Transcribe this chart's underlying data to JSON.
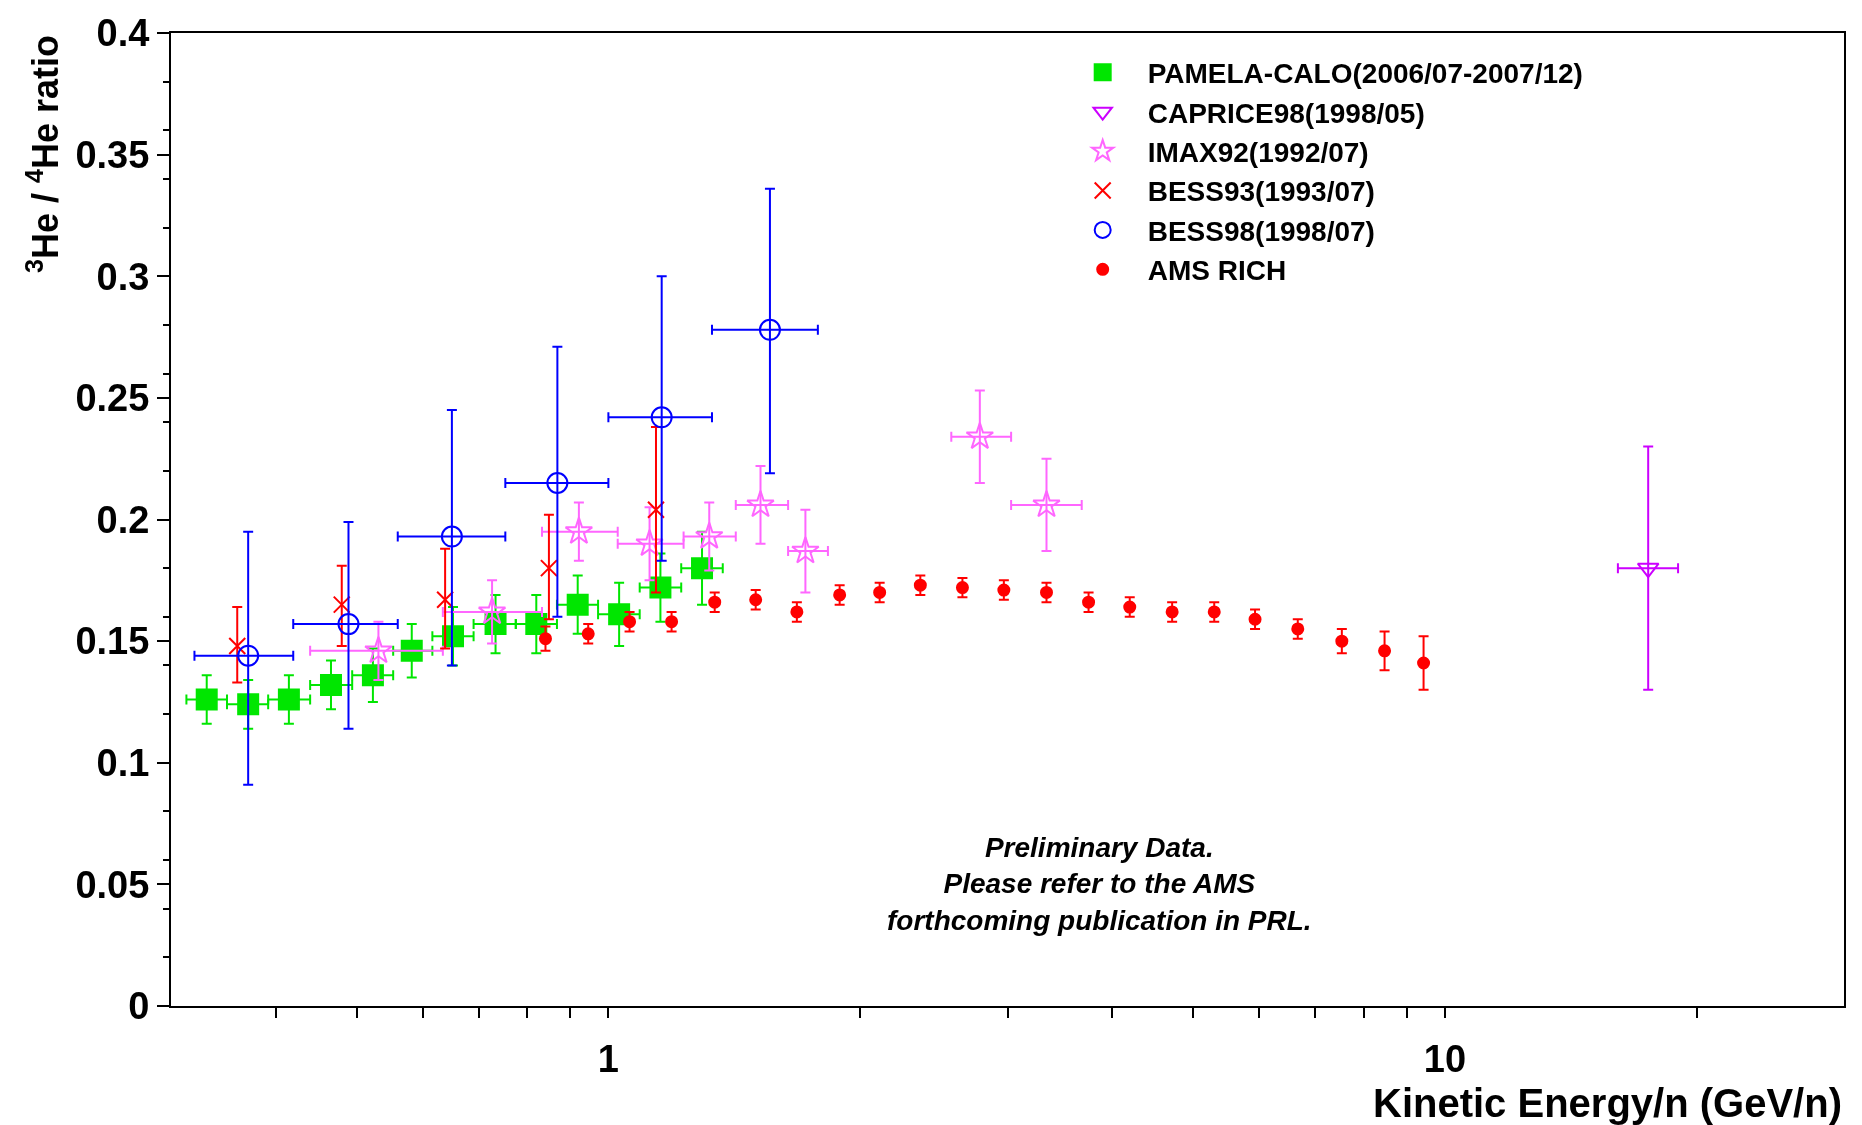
{
  "chart_data": {
    "type": "scatter",
    "xlabel": "Kinetic Energy/n (GeV/n)",
    "ylabel": "$^{3}$He / $^{4}$He ratio",
    "log": "x",
    "xlim": [
      0.3,
      30
    ],
    "xticks": [
      {
        "value": 0.4,
        "label": null
      },
      {
        "value": 0.5,
        "label": null
      },
      {
        "value": 0.6,
        "label": null
      },
      {
        "value": 0.7,
        "label": null
      },
      {
        "value": 0.8,
        "label": null
      },
      {
        "value": 0.9,
        "label": null
      },
      1,
      {
        "value": 2,
        "label": null
      },
      {
        "value": 3,
        "label": null
      },
      {
        "value": 4,
        "label": null
      },
      {
        "value": 5,
        "label": null
      },
      {
        "value": 6,
        "label": null
      },
      {
        "value": 7,
        "label": null
      },
      {
        "value": 8,
        "label": null
      },
      {
        "value": 9,
        "label": null
      },
      10,
      {
        "value": 20,
        "label": null
      }
    ],
    "ylim": [
      0,
      0.4
    ],
    "yticks": [
      0,
      0.05,
      0.1,
      0.15,
      0.2,
      0.25,
      0.3,
      0.35,
      0.4
    ],
    "legend": "top right",
    "annotations": [
      "Preliminary Data.\nPlease refer to the AMS\nforthcoming publication in PRL."
    ],
    "series": [
      {
        "name": "PAMELA-CALO(2006/07-2007/12)",
        "color": "#00e600",
        "marker": "square",
        "x": [
          0.331,
          0.371,
          0.415,
          0.466,
          0.523,
          0.582,
          0.652,
          0.733,
          0.82,
          0.919,
          1.03,
          1.154,
          1.294
        ],
        "values": [
          0.126,
          0.124,
          0.126,
          0.132,
          0.136,
          0.146,
          0.152,
          0.157,
          0.157,
          0.165,
          0.161,
          0.172,
          0.18
        ],
        "errors": [
          0.01,
          0.01,
          0.01,
          0.01,
          0.011,
          0.011,
          0.012,
          0.012,
          0.012,
          0.012,
          0.013,
          0.014,
          0.015
        ],
        "xerrors": [
          [
            0.313,
            0.35
          ],
          [
            0.35,
            0.392
          ],
          [
            0.392,
            0.44
          ],
          [
            0.44,
            0.494
          ],
          [
            0.494,
            0.553
          ],
          [
            0.553,
            0.616
          ],
          [
            0.616,
            0.69
          ],
          [
            0.69,
            0.775
          ],
          [
            0.775,
            0.868
          ],
          [
            0.868,
            0.972
          ],
          [
            0.972,
            1.09
          ],
          [
            1.09,
            1.222
          ],
          [
            1.222,
            1.37
          ]
        ]
      },
      {
        "name": "CAPRICE98(1998/05)",
        "color": "#cc00ff",
        "marker": "triangle-down",
        "x": [
          17.5
        ],
        "values": [
          0.18
        ],
        "errors": [
          [
            0.13,
            0.23
          ]
        ],
        "xerrors": [
          [
            16.1,
            19.0
          ]
        ]
      },
      {
        "name": "IMAX92(1992/07)",
        "color": "#ff66ff",
        "marker": "star",
        "x": [
          0.531,
          0.726,
          0.922,
          1.12,
          1.32,
          1.52,
          1.72,
          2.78,
          3.34
        ],
        "values": [
          0.146,
          0.162,
          0.195,
          0.19,
          0.193,
          0.206,
          0.187,
          0.234,
          0.206
        ],
        "errors": [
          0.012,
          0.013,
          0.012,
          0.015,
          0.014,
          0.016,
          0.017,
          0.019,
          0.019
        ],
        "xerrors": [
          [
            0.44,
            0.634
          ],
          [
            0.634,
            0.833
          ],
          [
            0.833,
            1.026
          ],
          [
            1.026,
            1.23
          ],
          [
            1.23,
            1.42
          ],
          [
            1.42,
            1.64
          ],
          [
            1.64,
            1.83
          ],
          [
            2.57,
            3.03
          ],
          [
            3.03,
            3.68
          ]
        ]
      },
      {
        "name": "BESS93(1993/07)",
        "color": "#ff0000",
        "marker": "cross",
        "x": [
          0.36,
          0.48,
          0.638,
          0.849,
          1.14
        ],
        "values": [
          0.148,
          0.165,
          0.167,
          0.18,
          0.204
        ],
        "errors": [
          [
            0.133,
            0.164
          ],
          [
            0.148,
            0.181
          ],
          [
            0.147,
            0.188
          ],
          [
            0.159,
            0.202
          ],
          [
            0.17,
            0.238
          ]
        ]
      },
      {
        "name": "BESS98(1998/07)",
        "color": "#0000ff",
        "marker": "circle-open",
        "x": [
          0.371,
          0.489,
          0.65,
          0.869,
          1.158,
          1.56
        ],
        "values": [
          0.144,
          0.157,
          0.193,
          0.215,
          0.242,
          0.278
        ],
        "errors": [
          [
            0.091,
            0.195
          ],
          [
            0.114,
            0.199
          ],
          [
            0.14,
            0.245
          ],
          [
            0.16,
            0.271
          ],
          [
            0.183,
            0.3
          ],
          [
            0.219,
            0.336
          ]
        ],
        "xerrors": [
          [
            0.32,
            0.42
          ],
          [
            0.42,
            0.56
          ],
          [
            0.56,
            0.753
          ],
          [
            0.753,
            1.0
          ],
          [
            1.0,
            1.33
          ],
          [
            1.33,
            1.78
          ]
        ]
      },
      {
        "name": "AMS RICH",
        "color": "#ff0000",
        "marker": "circle",
        "x": [
          0.841,
          0.946,
          1.06,
          1.19,
          1.34,
          1.5,
          1.68,
          1.89,
          2.11,
          2.36,
          2.65,
          2.97,
          3.34,
          3.75,
          4.2,
          4.72,
          5.3,
          5.93,
          6.67,
          7.53,
          8.47,
          9.43
        ],
        "values": [
          0.151,
          0.153,
          0.158,
          0.158,
          0.166,
          0.167,
          0.162,
          0.169,
          0.17,
          0.173,
          0.172,
          0.171,
          0.17,
          0.166,
          0.164,
          0.162,
          0.162,
          0.159,
          0.155,
          0.15,
          0.146,
          0.141
        ],
        "errors": [
          0.005,
          0.004,
          0.004,
          0.004,
          0.004,
          0.004,
          0.004,
          0.004,
          0.004,
          0.004,
          0.004,
          0.004,
          0.004,
          0.004,
          0.004,
          0.004,
          0.004,
          0.004,
          0.004,
          0.005,
          0.008,
          0.011
        ]
      }
    ]
  }
}
